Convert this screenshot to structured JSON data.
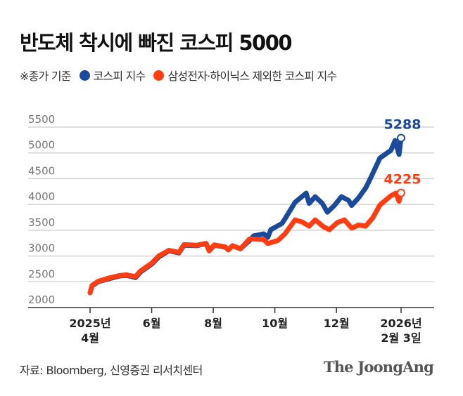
{
  "title": "반도체 착시에 빠진 코스피 5000",
  "legend": {
    "note": "※종가 기준",
    "items": [
      {
        "label": "코스피 지수",
        "color": "#1a4a99"
      },
      {
        "label": "삼성전자·하이닉스 제외한 코스피 지수",
        "color": "#ff3d12"
      }
    ]
  },
  "source": "자료: Bloomberg, 신영증권 리서치센터",
  "logo": "The JoongAng",
  "chart_data": {
    "type": "line",
    "title": "",
    "xlabel": "",
    "ylabel": "",
    "ylim": [
      2000,
      5500
    ],
    "yticks": [
      2000,
      2500,
      3000,
      3500,
      4000,
      4500,
      5000,
      5500
    ],
    "xlim": [
      "2025-04-01",
      "2026-02-03"
    ],
    "xticks": [
      {
        "date": "2025-04-01",
        "line1": "2025년",
        "line2": "4월"
      },
      {
        "date": "2025-06-01",
        "line1": "6월",
        "line2": ""
      },
      {
        "date": "2025-08-01",
        "line1": "8월",
        "line2": ""
      },
      {
        "date": "2025-10-01",
        "line1": "10월",
        "line2": ""
      },
      {
        "date": "2025-12-01",
        "line1": "12월",
        "line2": ""
      },
      {
        "date": "2026-02-03",
        "line1": "2026년",
        "line2": "2월 3일"
      }
    ],
    "grid": true,
    "series": [
      {
        "name": "코스피 지수",
        "color": "#1a4a99",
        "end_label": "5288",
        "points": [
          [
            "2025-04-01",
            2286
          ],
          [
            "2025-04-03",
            2420
          ],
          [
            "2025-04-09",
            2500
          ],
          [
            "2025-04-20",
            2560
          ],
          [
            "2025-04-30",
            2610
          ],
          [
            "2025-05-07",
            2625
          ],
          [
            "2025-05-16",
            2580
          ],
          [
            "2025-05-21",
            2690
          ],
          [
            "2025-06-01",
            2840
          ],
          [
            "2025-06-08",
            2980
          ],
          [
            "2025-06-18",
            3100
          ],
          [
            "2025-06-28",
            3060
          ],
          [
            "2025-07-03",
            3210
          ],
          [
            "2025-07-16",
            3200
          ],
          [
            "2025-07-25",
            3240
          ],
          [
            "2025-07-28",
            3100
          ],
          [
            "2025-08-02",
            3210
          ],
          [
            "2025-08-13",
            3170
          ],
          [
            "2025-08-16",
            3120
          ],
          [
            "2025-08-20",
            3200
          ],
          [
            "2025-08-28",
            3140
          ],
          [
            "2025-09-06",
            3300
          ],
          [
            "2025-09-10",
            3390
          ],
          [
            "2025-09-20",
            3430
          ],
          [
            "2025-09-24",
            3360
          ],
          [
            "2025-09-27",
            3510
          ],
          [
            "2025-10-08",
            3630
          ],
          [
            "2025-10-11",
            3720
          ],
          [
            "2025-10-21",
            4040
          ],
          [
            "2025-11-01",
            4220
          ],
          [
            "2025-11-04",
            4020
          ],
          [
            "2025-11-10",
            4150
          ],
          [
            "2025-11-17",
            4020
          ],
          [
            "2025-11-22",
            3850
          ],
          [
            "2025-11-29",
            3980
          ],
          [
            "2025-12-06",
            4150
          ],
          [
            "2025-12-13",
            4080
          ],
          [
            "2025-12-16",
            3980
          ],
          [
            "2025-12-23",
            4130
          ],
          [
            "2025-12-30",
            4320
          ],
          [
            "2026-01-05",
            4560
          ],
          [
            "2026-01-13",
            4900
          ],
          [
            "2026-01-24",
            5050
          ],
          [
            "2026-01-28",
            5240
          ],
          [
            "2026-02-01",
            4970
          ],
          [
            "2026-02-03",
            5288
          ]
        ]
      },
      {
        "name": "삼성전자·하이닉스 제외한 코스피 지수",
        "color": "#ff3d12",
        "end_label": "4225",
        "points": [
          [
            "2025-04-01",
            2286
          ],
          [
            "2025-04-03",
            2430
          ],
          [
            "2025-04-09",
            2510
          ],
          [
            "2025-04-20",
            2575
          ],
          [
            "2025-04-30",
            2620
          ],
          [
            "2025-05-07",
            2635
          ],
          [
            "2025-05-16",
            2600
          ],
          [
            "2025-05-21",
            2710
          ],
          [
            "2025-06-01",
            2860
          ],
          [
            "2025-06-08",
            3000
          ],
          [
            "2025-06-18",
            3110
          ],
          [
            "2025-06-28",
            3070
          ],
          [
            "2025-07-03",
            3220
          ],
          [
            "2025-07-16",
            3210
          ],
          [
            "2025-07-25",
            3245
          ],
          [
            "2025-07-28",
            3100
          ],
          [
            "2025-08-02",
            3215
          ],
          [
            "2025-08-13",
            3175
          ],
          [
            "2025-08-16",
            3120
          ],
          [
            "2025-08-20",
            3200
          ],
          [
            "2025-08-28",
            3140
          ],
          [
            "2025-09-06",
            3330
          ],
          [
            "2025-09-20",
            3320
          ],
          [
            "2025-09-24",
            3240
          ],
          [
            "2025-10-04",
            3300
          ],
          [
            "2025-10-11",
            3430
          ],
          [
            "2025-10-21",
            3700
          ],
          [
            "2025-10-28",
            3660
          ],
          [
            "2025-11-04",
            3580
          ],
          [
            "2025-11-10",
            3700
          ],
          [
            "2025-11-18",
            3570
          ],
          [
            "2025-11-24",
            3510
          ],
          [
            "2025-12-02",
            3650
          ],
          [
            "2025-12-09",
            3700
          ],
          [
            "2025-12-16",
            3540
          ],
          [
            "2025-12-23",
            3600
          ],
          [
            "2025-12-30",
            3580
          ],
          [
            "2026-01-06",
            3740
          ],
          [
            "2026-01-13",
            3990
          ],
          [
            "2026-01-24",
            4170
          ],
          [
            "2026-01-29",
            4220
          ],
          [
            "2026-02-01",
            4060
          ],
          [
            "2026-02-03",
            4225
          ]
        ]
      }
    ]
  }
}
